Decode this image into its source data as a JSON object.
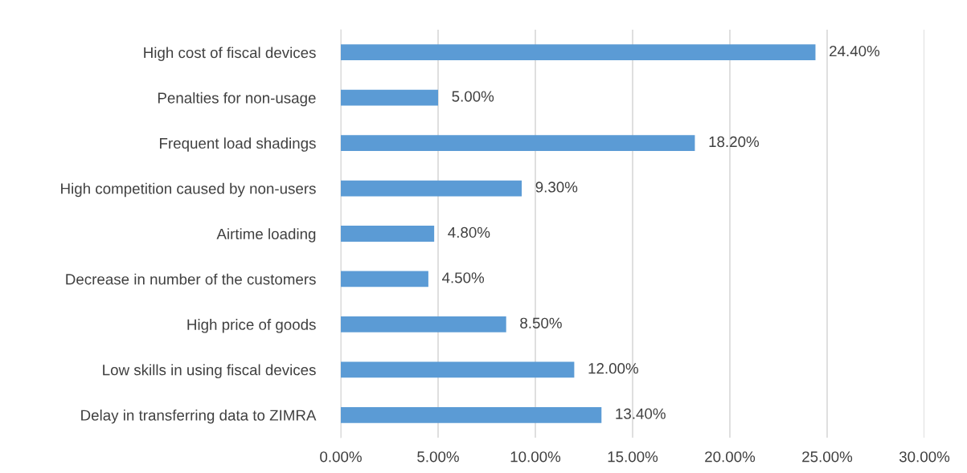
{
  "chart_data": {
    "type": "bar",
    "orientation": "horizontal",
    "categories": [
      "High cost of fiscal devices",
      "Penalties for non-usage",
      "Frequent load shadings",
      "High competition caused by non-users",
      "Airtime loading",
      "Decrease in number of the customers",
      "High price of goods",
      "Low skills in using fiscal devices",
      "Delay in transferring data to ZIMRA"
    ],
    "values": [
      24.4,
      5.0,
      18.2,
      9.3,
      4.8,
      4.5,
      8.5,
      12.0,
      13.4
    ],
    "value_labels": [
      "24.40%",
      "5.00%",
      "18.20%",
      "9.30%",
      "4.80%",
      "4.50%",
      "8.50%",
      "12.00%",
      "13.40%"
    ],
    "color": "#5b9bd5",
    "xlim": [
      0,
      30
    ],
    "xticks": [
      {
        "value": 0,
        "label": "0.00%"
      },
      {
        "value": 5,
        "label": "5.00%"
      },
      {
        "value": 10,
        "label": "10.00%"
      },
      {
        "value": 15,
        "label": "15.00%"
      },
      {
        "value": 20,
        "label": "20.00%"
      },
      {
        "value": 25,
        "label": "25.00%"
      },
      {
        "value": 30,
        "label": "30.00%"
      }
    ],
    "grid": "x",
    "legend": false
  }
}
